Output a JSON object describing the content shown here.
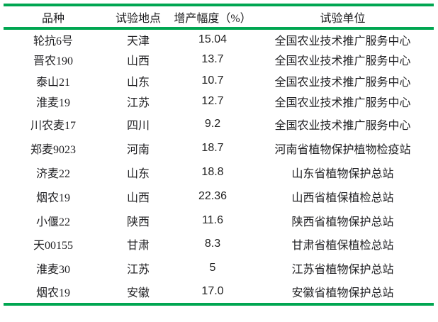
{
  "accent_color": "#00a651",
  "table": {
    "columns": [
      {
        "key": "variety",
        "label": "品种"
      },
      {
        "key": "location",
        "label": "试验地点"
      },
      {
        "key": "increase",
        "label": "增产幅度（%）"
      },
      {
        "key": "unit",
        "label": "试验单位"
      }
    ],
    "rows": [
      {
        "variety": "轮抗6号",
        "location": "天津",
        "increase": "15.04",
        "unit": "全国农业技术推广服务中心"
      },
      {
        "variety": "晋农190",
        "location": "山西",
        "increase": "13.7",
        "unit": "全国农业技术推广服务中心"
      },
      {
        "variety": "泰山21",
        "location": "山东",
        "increase": "10.7",
        "unit": "全国农业技术推广服务中心"
      },
      {
        "variety": "淮麦19",
        "location": "江苏",
        "increase": "12.7",
        "unit": "全国农业技术推广服务中心"
      },
      {
        "variety": "川农麦17",
        "location": "四川",
        "increase": "9.2",
        "unit": "全国农业技术推广服务中心"
      },
      {
        "variety": "郑麦9023",
        "location": "河南",
        "increase": "18.7",
        "unit": "河南省植物保护植物检疫站"
      },
      {
        "variety": "济麦22",
        "location": "山东",
        "increase": "18.8",
        "unit": "山东省植物保护总站"
      },
      {
        "variety": "烟农19",
        "location": "山西",
        "increase": "22.36",
        "unit": "山西省植保植检总站"
      },
      {
        "variety": "小偃22",
        "location": "陕西",
        "increase": "11.6",
        "unit": "陕西省植物保护总站"
      },
      {
        "variety": "天00155",
        "location": "甘肃",
        "increase": "8.3",
        "unit": "甘肃省植保植检总站"
      },
      {
        "variety": "淮麦30",
        "location": "江苏",
        "increase": "5",
        "unit": "江苏省植物保护总站"
      },
      {
        "variety": "烟农19",
        "location": "安徽",
        "increase": "17.0",
        "unit": "安徽省植物保护总站"
      }
    ]
  }
}
